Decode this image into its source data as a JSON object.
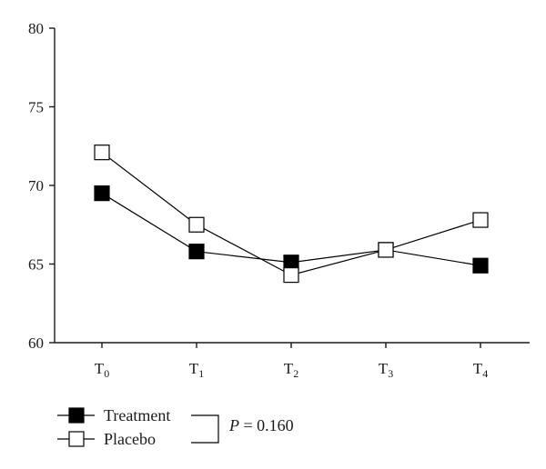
{
  "chart_data": {
    "type": "line",
    "categories": [
      {
        "base": "T",
        "sub": "0"
      },
      {
        "base": "T",
        "sub": "1"
      },
      {
        "base": "T",
        "sub": "2"
      },
      {
        "base": "T",
        "sub": "3"
      },
      {
        "base": "T",
        "sub": "4"
      }
    ],
    "ylim": [
      60,
      80
    ],
    "yticks": [
      60,
      65,
      70,
      75,
      80
    ],
    "series": [
      {
        "name": "Treatment",
        "marker": "filled-square",
        "values": [
          69.5,
          65.8,
          65.1,
          65.9,
          64.9
        ]
      },
      {
        "name": "Placebo",
        "marker": "open-square",
        "values": [
          72.1,
          67.5,
          64.3,
          65.9,
          67.8
        ]
      }
    ],
    "annotation": {
      "italic": "P",
      "rest": " = 0.160"
    },
    "grid": false,
    "legend_position": "bottom-left"
  }
}
